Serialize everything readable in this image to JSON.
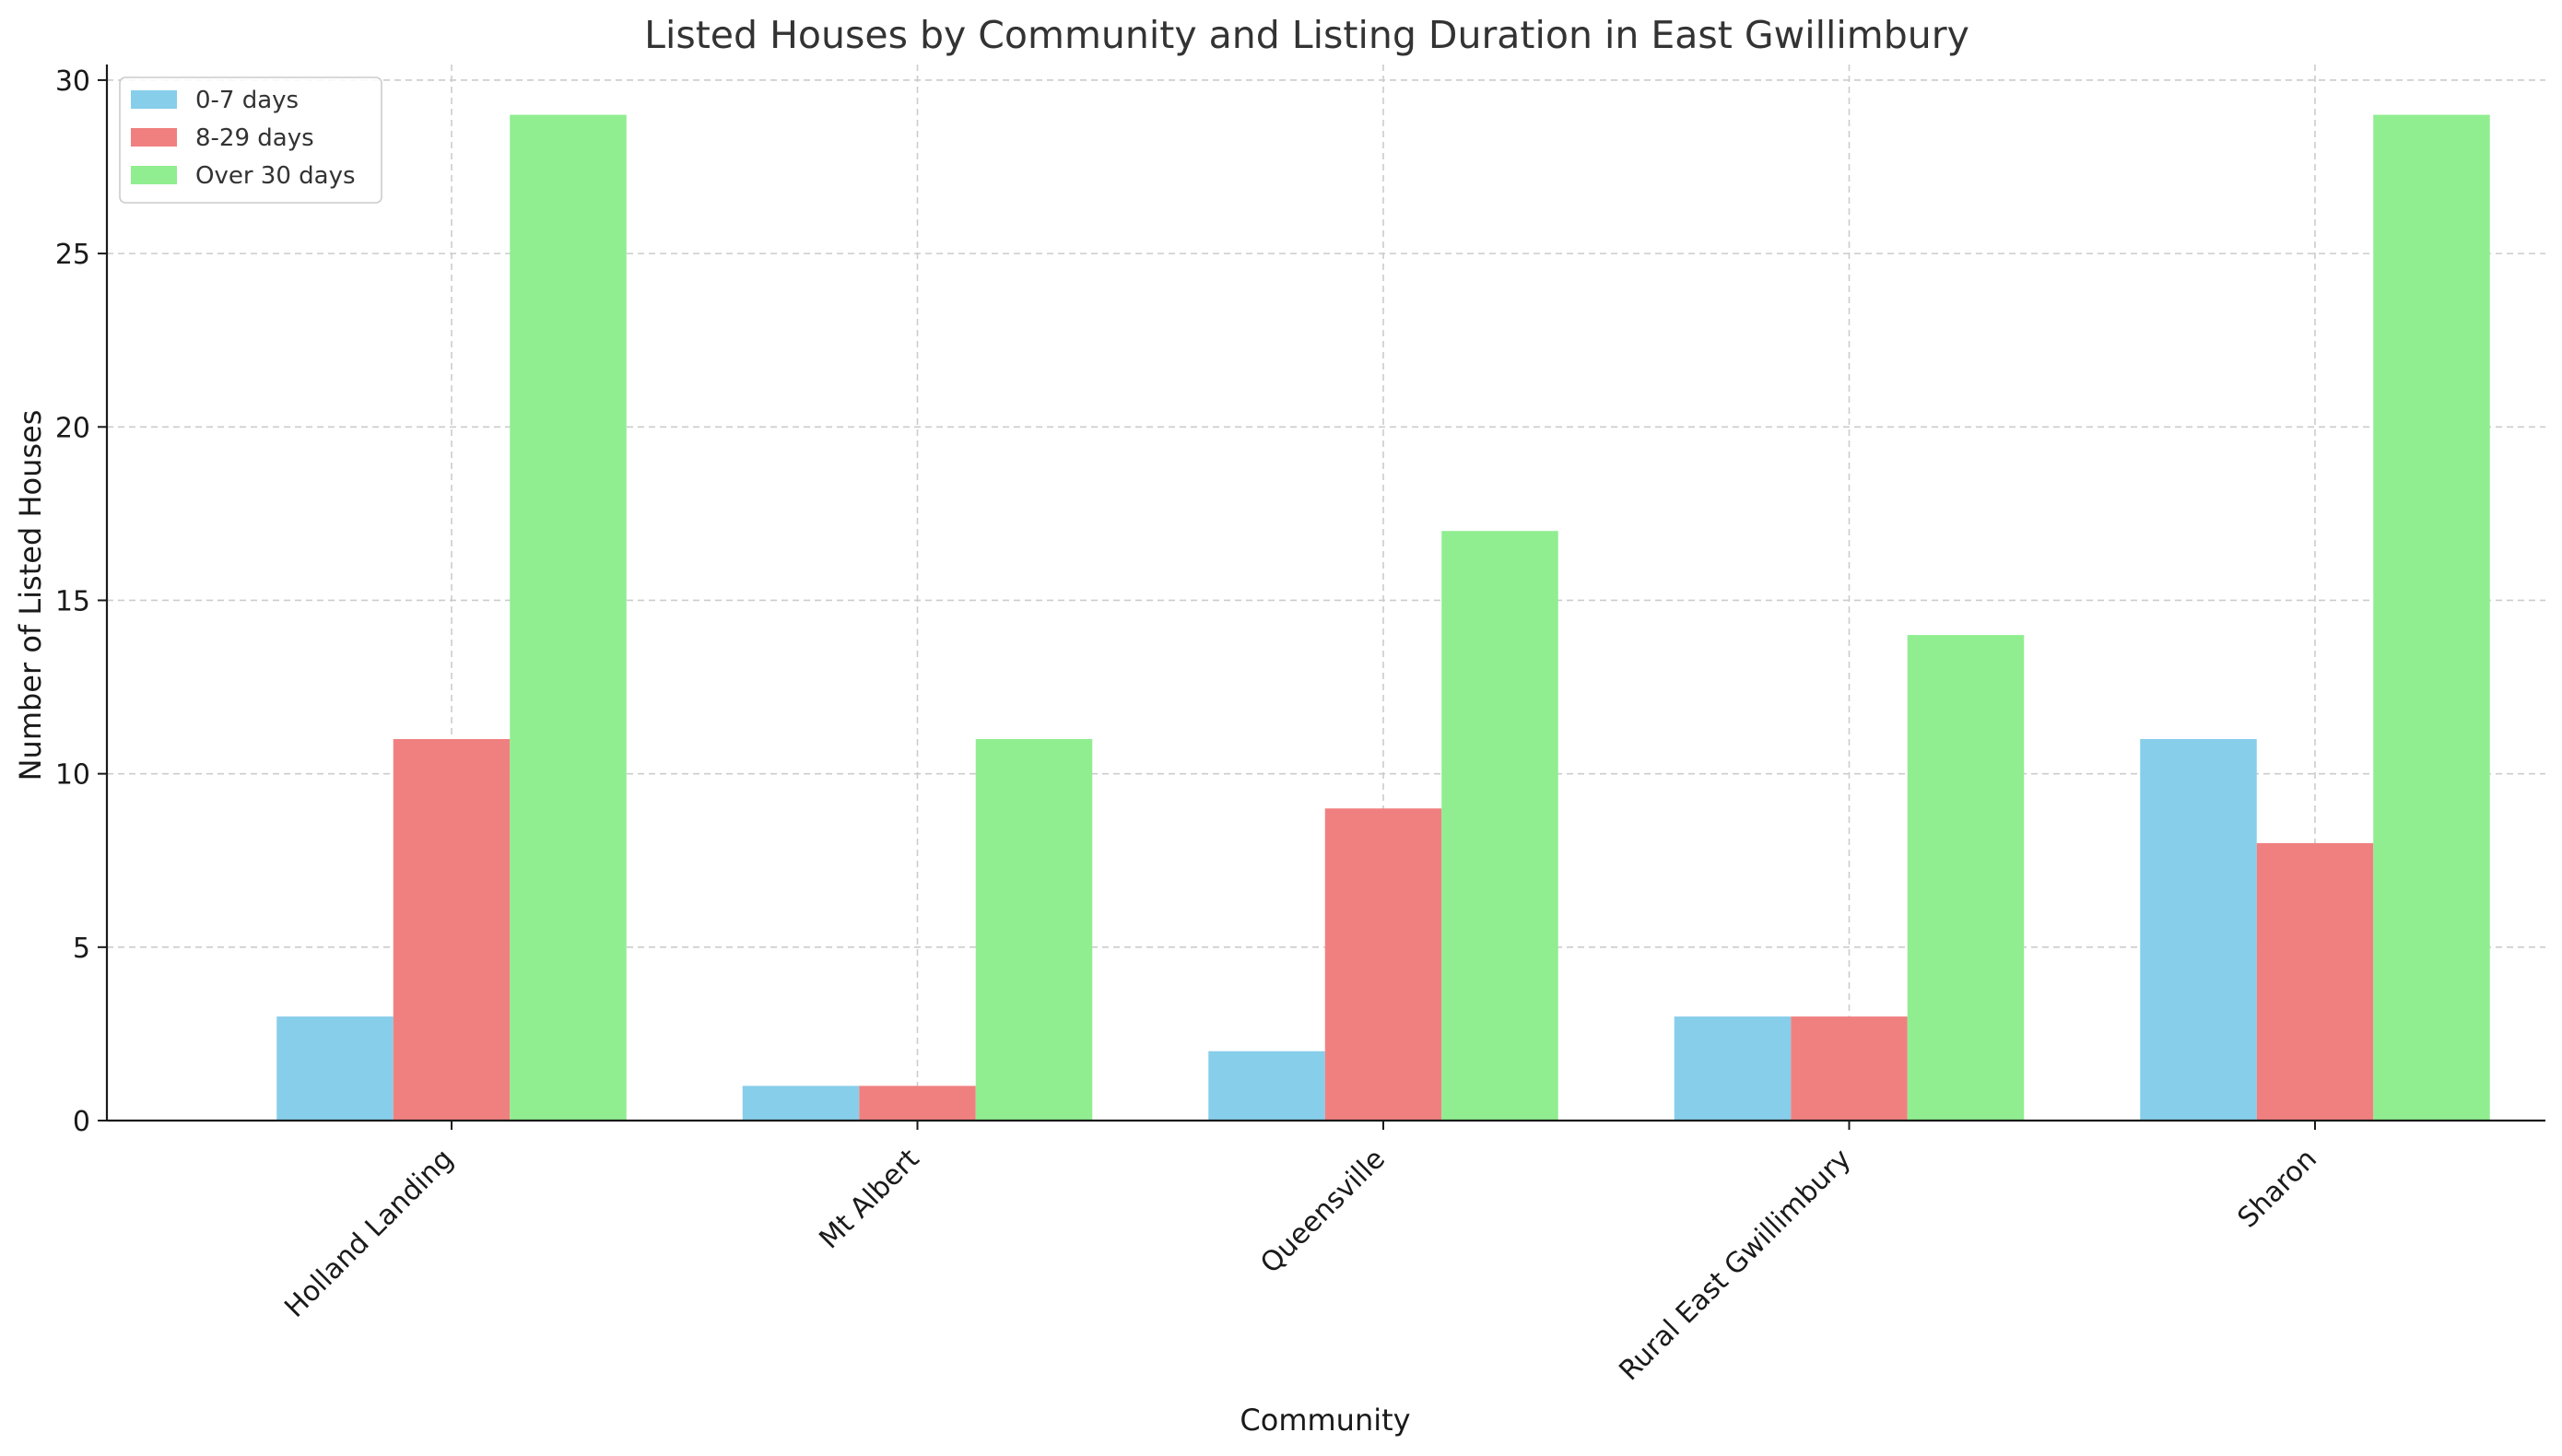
{
  "chart_data": {
    "type": "bar",
    "title": "Listed Houses by Community and Listing Duration in East Gwillimbury",
    "xlabel": "Community",
    "ylabel": "Number of Listed Houses",
    "categories": [
      "Holland Landing",
      "Mt Albert",
      "Queensville",
      "Rural East Gwillimbury",
      "Sharon"
    ],
    "series": [
      {
        "name": "0-7 days",
        "color": "#87ceeb",
        "values": [
          3,
          1,
          2,
          3,
          11
        ]
      },
      {
        "name": "8-29 days",
        "color": "#f08080",
        "values": [
          11,
          1,
          9,
          3,
          8
        ]
      },
      {
        "name": "Over 30 days",
        "color": "#90ee90",
        "values": [
          29,
          11,
          17,
          14,
          29
        ]
      }
    ],
    "ylim": [
      0,
      30.45
    ],
    "yticks": [
      0,
      5,
      10,
      15,
      20,
      25,
      30
    ],
    "grid": true,
    "legend_position": "top-left"
  }
}
